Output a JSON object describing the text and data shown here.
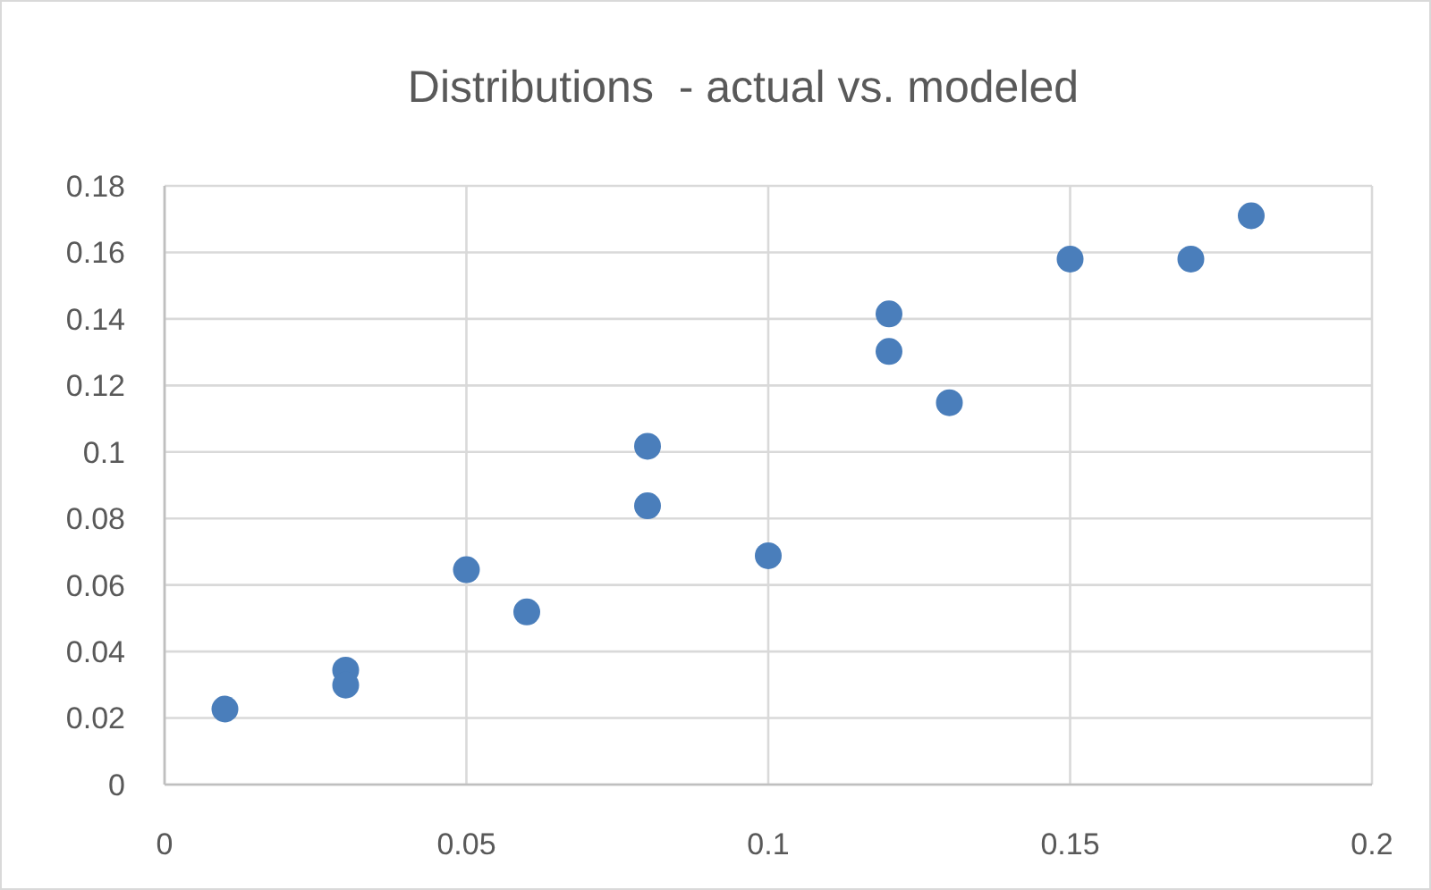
{
  "chart_data": {
    "type": "scatter",
    "title": "Distributions  - actual vs. modeled",
    "x": [
      0.01,
      0.03,
      0.03,
      0.05,
      0.06,
      0.08,
      0.08,
      0.1,
      0.12,
      0.12,
      0.13,
      0.15,
      0.17,
      0.18
    ],
    "series": [
      {
        "color": "#4a7ebb",
        "values": [
          0.0227,
          0.0344,
          0.0299,
          0.0646,
          0.0519,
          0.1017,
          0.0838,
          0.0688,
          0.1415,
          0.1302,
          0.1148,
          0.158,
          0.158,
          0.171
        ]
      }
    ],
    "xlim": [
      0,
      0.2
    ],
    "xticks": [
      0,
      0.05,
      0.1,
      0.15,
      0.2
    ],
    "ylim": [
      0,
      0.18
    ],
    "yticks": [
      0,
      0.02,
      0.04,
      0.06,
      0.08,
      0.1,
      0.12,
      0.14,
      0.16,
      0.18
    ],
    "grid": true,
    "marker": "circle"
  }
}
